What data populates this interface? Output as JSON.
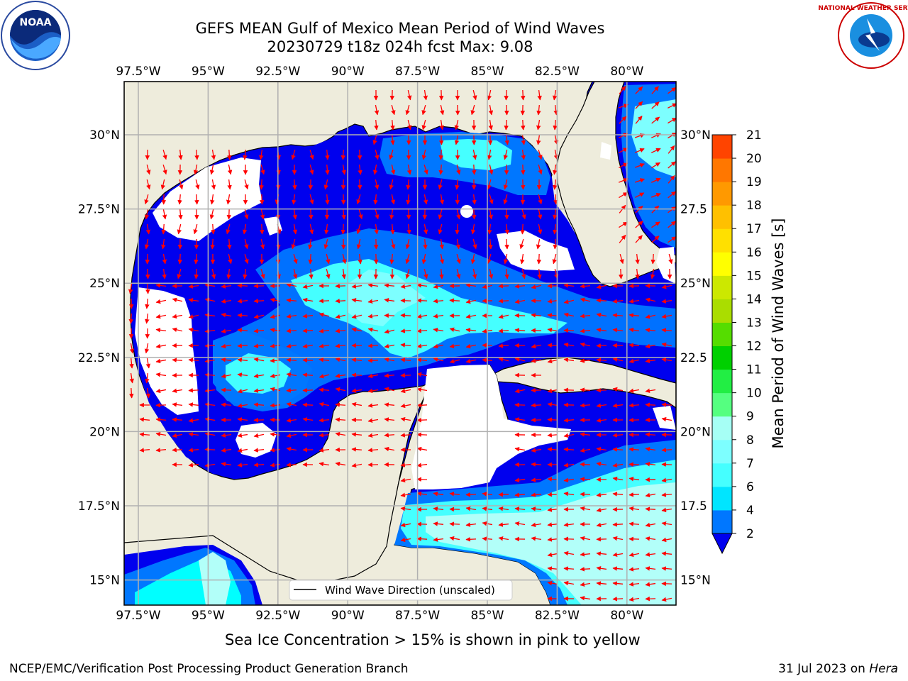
{
  "title_line1": "GEFS MEAN Gulf of Mexico Mean Period of Wind Waves",
  "title_line2": "20230729 t18z 024h fcst   Max: 9.08",
  "lon_ticks": [
    "97.5°W",
    "95°W",
    "92.5°W",
    "90°W",
    "87.5°W",
    "85°W",
    "82.5°W",
    "80°W"
  ],
  "lat_ticks": [
    "30°N",
    "27.5°N",
    "25°N",
    "22.5°N",
    "20°N",
    "17.5°N",
    "15°N"
  ],
  "lat_ticks_right": [
    "30°N",
    "27.5",
    "25°N",
    "22.5",
    "20°N",
    "17.5",
    "15°N"
  ],
  "legend_label": "Wind Wave Direction (unscaled)",
  "colorbar": {
    "label": "Mean Period of Wind Waves [s]",
    "levels": [
      "2",
      "4",
      "6",
      "7",
      "8",
      "9",
      "10",
      "11",
      "12",
      "13",
      "14",
      "15",
      "16",
      "17",
      "18",
      "19",
      "20",
      "21"
    ],
    "tick_labels": [
      "2",
      "4",
      "6",
      "7",
      "8",
      "9",
      "10",
      "11",
      "12",
      "13",
      "14",
      "15",
      "16",
      "17",
      "18",
      "19",
      "20",
      "21"
    ],
    "colors": [
      "#0077ff",
      "#00e5ff",
      "#45ffff",
      "#7dffff",
      "#a6fff5",
      "#55ff80",
      "#22ee44",
      "#00d000",
      "#55dd00",
      "#aadd00",
      "#cce800",
      "#ffff00",
      "#ffe000",
      "#ffc000",
      "#ff9900",
      "#ff7700",
      "#ff4400",
      "#ff1100",
      "#ee0000"
    ]
  },
  "palette": {
    "land": "#eeecdc",
    "coast": "#000000",
    "grid": "#b0b0b0",
    "arrow": "#ff0000",
    "under_range": "#0000ee",
    "blue_4": "#0077ff",
    "cyan_6": "#00ffff",
    "aqua_7": "#7dffff",
    "aqua_8": "#b2fff9"
  },
  "subtitle_note": "Sea Ice Concentration > 15% is shown in pink to yellow",
  "footer_left": "NCEP/EMC/Verification Post Processing Product Generation Branch",
  "footer_right_date": "31 Jul 2023 on ",
  "footer_right_machine": "Hera",
  "logos": {
    "left": "NOAA",
    "right": "NATIONAL WEATHER SERVICE"
  }
}
